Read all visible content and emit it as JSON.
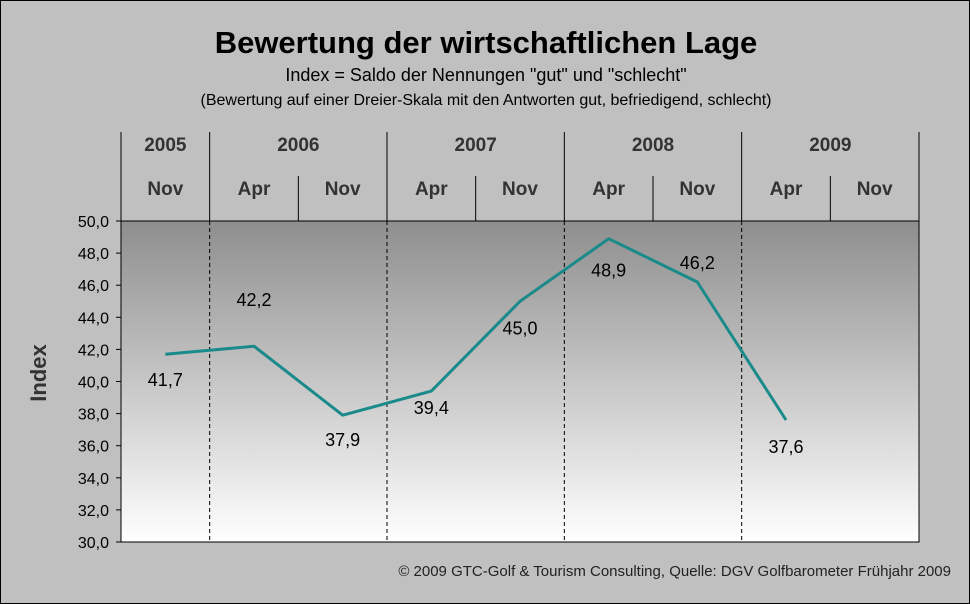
{
  "title": "Bewertung der wirtschaftlichen Lage",
  "subtitle": "Index = Saldo der Nennungen \"gut\" und \"schlecht\"",
  "subtitle2": "(Bewertung auf einer Dreier-Skala mit den Antworten gut, befriedigend, schlecht)",
  "footer": "© 2009 GTC-Golf & Tourism Consulting, Quelle: DGV Golfbarometer Frühjahr 2009",
  "colors": {
    "line": "#1a8a8a",
    "background": "#c0c0c0"
  },
  "chart_data": {
    "type": "line",
    "ylabel": "Index",
    "ylim": [
      30,
      50
    ],
    "yticks": [
      "30,0",
      "32,0",
      "34,0",
      "36,0",
      "38,0",
      "40,0",
      "42,0",
      "44,0",
      "46,0",
      "48,0",
      "50,0"
    ],
    "years": [
      {
        "label": "2005",
        "span": 1
      },
      {
        "label": "2006",
        "span": 2
      },
      {
        "label": "2007",
        "span": 2
      },
      {
        "label": "2008",
        "span": 2
      },
      {
        "label": "2009",
        "span": 2
      }
    ],
    "categories": [
      "Nov",
      "Apr",
      "Nov",
      "Apr",
      "Nov",
      "Apr",
      "Nov",
      "Apr",
      "Nov"
    ],
    "series": [
      {
        "name": "Index",
        "values": [
          41.7,
          42.2,
          37.9,
          39.4,
          45.0,
          48.9,
          46.2,
          37.6,
          null
        ]
      }
    ],
    "data_labels": [
      "41,7",
      "42,2",
      "37,9",
      "39,4",
      "45,0",
      "48,9",
      "46,2",
      "37,6",
      ""
    ]
  }
}
